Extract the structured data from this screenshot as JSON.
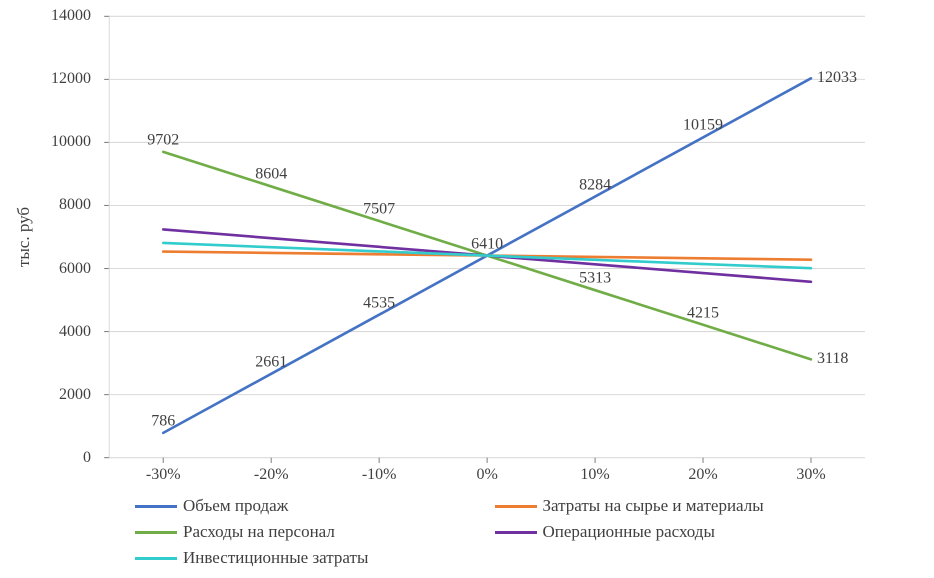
{
  "chart": {
    "type": "line",
    "background_color": "#ffffff",
    "grid_color": "#d9d9d9",
    "axis_color": "#d9d9d9",
    "tick_color": "#808080",
    "text_color": "#404040",
    "axis_fontsize": 16,
    "ylabel": "тыс. руб",
    "ylabel_fontsize": 17,
    "ylim": [
      0,
      14000
    ],
    "ytick_step": 2000,
    "yticks": [
      0,
      2000,
      4000,
      6000,
      8000,
      10000,
      12000,
      14000
    ],
    "categories": [
      "-30%",
      "-20%",
      "-10%",
      "0%",
      "10%",
      "20%",
      "30%"
    ],
    "line_width": 2.5,
    "series": [
      {
        "name": "Объем продаж",
        "color": "#4472c4",
        "values": [
          786,
          2661,
          4535,
          6410,
          8284,
          10159,
          12033
        ],
        "labels": [
          786,
          2661,
          4535,
          6410,
          8284,
          10159,
          12033
        ],
        "label_series": true,
        "label_last_right": true
      },
      {
        "name": "Затраты на сырье и материалы",
        "color": "#ed7d31",
        "values": [
          6538,
          6495,
          6453,
          6410,
          6367,
          6325,
          6282
        ],
        "label_series": false
      },
      {
        "name": "Расходы на персонал",
        "color": "#70ad47",
        "values": [
          9702,
          8604,
          7507,
          6410,
          5313,
          4215,
          3118
        ],
        "labels": [
          9702,
          8604,
          7507,
          null,
          5313,
          4215,
          3118
        ],
        "label_series": true,
        "label_last_right": true
      },
      {
        "name": "Операционные расходы",
        "color": "#7030a0",
        "values": [
          7240,
          6963,
          6687,
          6410,
          6133,
          5857,
          5580
        ],
        "label_series": false
      },
      {
        "name": "Инвестиционные затраты",
        "color": "#33cccc",
        "values": [
          6810,
          6677,
          6543,
          6410,
          6277,
          6143,
          6010
        ],
        "label_series": false
      }
    ],
    "legend": {
      "position": "bottom",
      "fontsize": 17,
      "items": [
        "Объем продаж",
        "Затраты на сырье и материалы",
        "Расходы на персонал",
        "Операционные расходы",
        "Инвестиционные затраты"
      ]
    }
  }
}
